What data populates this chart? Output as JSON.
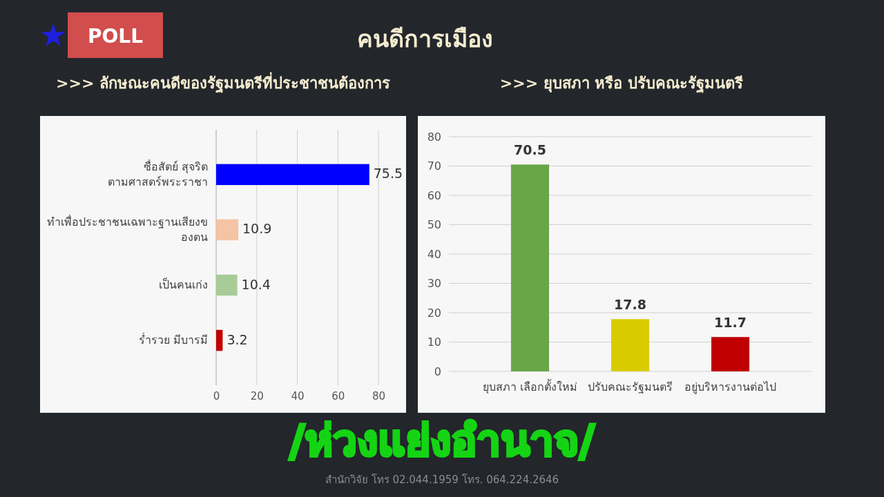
{
  "chart_data": [
    {
      "type": "other",
      "title": "คนดีการเมือง",
      "annotations": [
        "POLL",
        "/ห่วงแย่งอำนาจ/",
        "สำนักวิจัย โทร 02.044.1959  โทร. 064.224.2646"
      ]
    },
    {
      "type": "bar",
      "orientation": "horizontal",
      "title": ">>> ลักษณะคนดีของรัฐมนตรีที่ประชาชนต้องการ",
      "categories": [
        "ซื่อสัตย์ สุจริต ตามศาสตร์พระราชา",
        "ทำเพื่อประชาชนเฉพาะฐานเสียงของตน",
        "เป็นคนเก่ง",
        "ร่ำรวย มีบารมี"
      ],
      "values": [
        75.5,
        10.9,
        10.4,
        3.2
      ],
      "colors": [
        "#0000ff",
        "#f4c4a4",
        "#a8cc98",
        "#c00000"
      ],
      "xlim": [
        0,
        80
      ],
      "xticks": [
        0,
        20,
        40,
        60,
        80
      ],
      "grid": "x",
      "data_labels": true
    },
    {
      "type": "bar",
      "title": ">>> ยุบสภา หรือ ปรับคณะรัฐมนตรี",
      "categories": [
        "ยุบสภา เลือกตั้งใหม่",
        "ปรับคณะรัฐมนตรี",
        "อยู่บริหารงานต่อไป"
      ],
      "values": [
        70.5,
        17.8,
        11.7
      ],
      "colors": [
        "#68a648",
        "#d8cc00",
        "#c00000"
      ],
      "ylim": [
        0,
        80
      ],
      "yticks": [
        0,
        10,
        20,
        30,
        40,
        50,
        60,
        70,
        80
      ],
      "grid": "y",
      "data_labels": true
    }
  ]
}
